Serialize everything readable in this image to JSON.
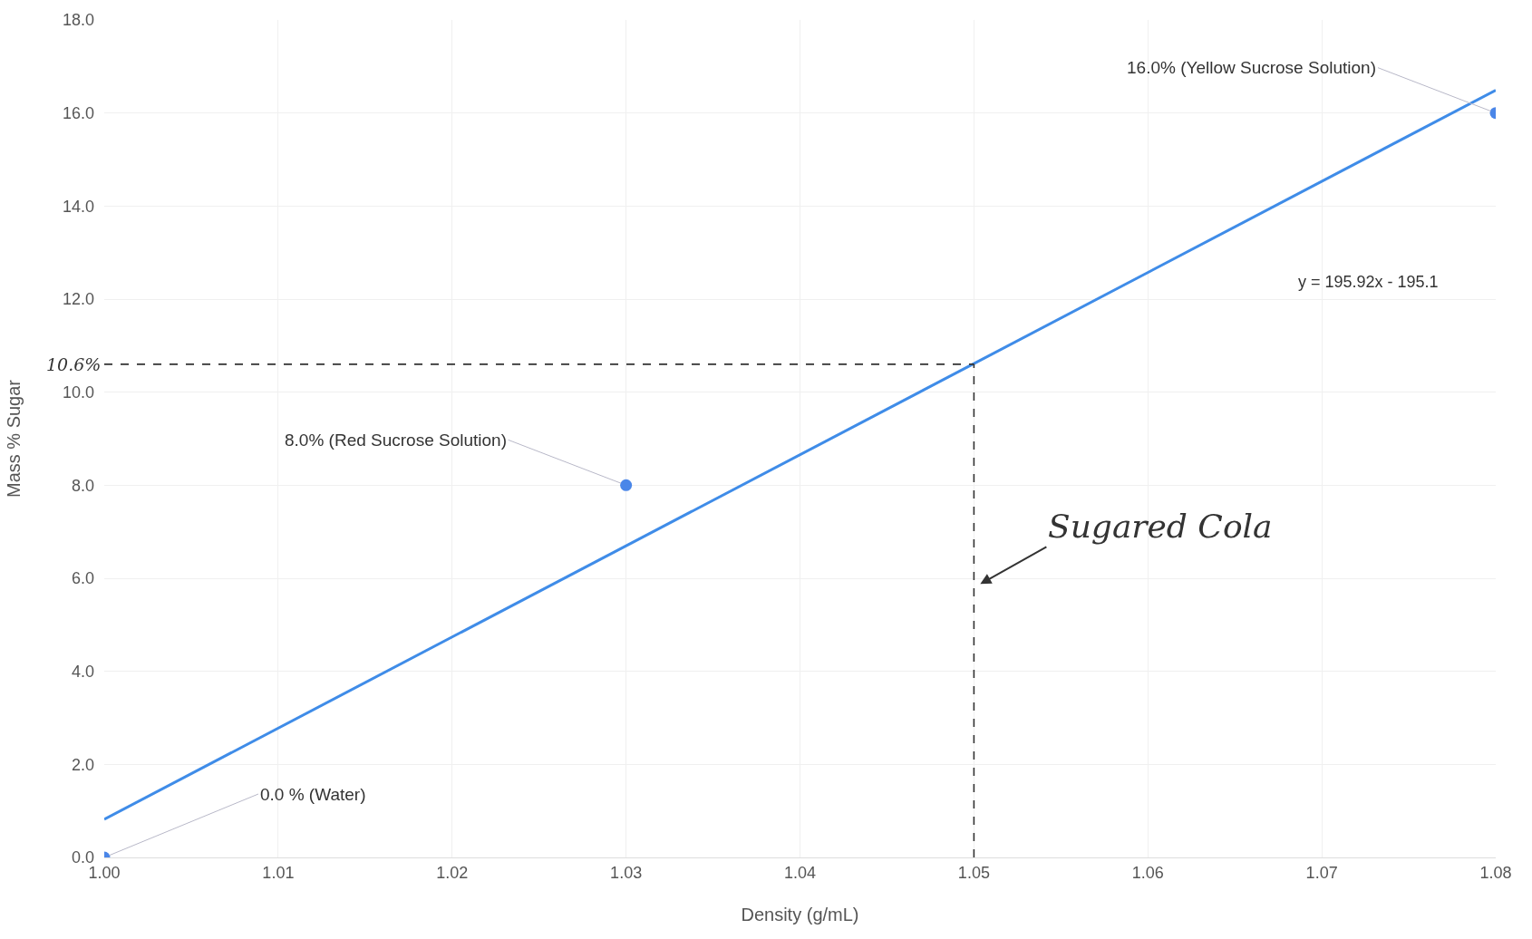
{
  "chart_data": {
    "type": "scatter",
    "xlabel": "Density (g/mL)",
    "ylabel": "Mass % Sugar",
    "xlim": [
      1.0,
      1.08
    ],
    "ylim": [
      0,
      18
    ],
    "xticks": [
      {
        "value": 1.0,
        "label": "1.00"
      },
      {
        "value": 1.01,
        "label": "1.01"
      },
      {
        "value": 1.02,
        "label": "1.02"
      },
      {
        "value": 1.03,
        "label": "1.03"
      },
      {
        "value": 1.04,
        "label": "1.04"
      },
      {
        "value": 1.05,
        "label": "1.05"
      },
      {
        "value": 1.06,
        "label": "1.06"
      },
      {
        "value": 1.07,
        "label": "1.07"
      },
      {
        "value": 1.08,
        "label": "1.08"
      }
    ],
    "yticks": [
      {
        "value": 0,
        "label": "0.0"
      },
      {
        "value": 2,
        "label": "2.0"
      },
      {
        "value": 4,
        "label": "4.0"
      },
      {
        "value": 6,
        "label": "6.0"
      },
      {
        "value": 8,
        "label": "8.0"
      },
      {
        "value": 10,
        "label": "10.0"
      },
      {
        "value": 12,
        "label": "12.0"
      },
      {
        "value": 14,
        "label": "14.0"
      },
      {
        "value": 16,
        "label": "16.0"
      },
      {
        "value": 18,
        "label": "18.0"
      }
    ],
    "grid": true,
    "marker": "circle",
    "series": [
      {
        "color": "#4a86e8",
        "x": [
          1.0,
          1.03,
          1.08
        ],
        "values": [
          0.0,
          8.0,
          16.0
        ]
      },
      {
        "type": "line",
        "color": "#3f8ce8",
        "x": [
          1.0,
          1.08
        ],
        "values": [
          0.82,
          16.49
        ],
        "line_style": "solid",
        "marker": "none"
      }
    ],
    "ref_lines": [
      {
        "axis": "y",
        "value": 10.6,
        "label": "10.6%",
        "color": "#333333",
        "line_style": "dashed"
      },
      {
        "axis": "x",
        "value": 1.05,
        "label": null,
        "color": "#333333",
        "line_style": "dashed"
      }
    ],
    "annotations": [
      {
        "text": "0.0 % (Water)",
        "x": 1.0,
        "y": 0.0
      },
      {
        "text": "8.0% (Red Sucrose Solution)",
        "x": 1.03,
        "y": 8.0
      },
      {
        "text": "16.0% (Yellow Sucrose Solution)",
        "x": 1.08,
        "y": 16.0
      },
      "y = 195.92x - 195.1",
      {
        "text": "Sugared Cola",
        "x": 1.05,
        "y": 5.8
      }
    ]
  }
}
